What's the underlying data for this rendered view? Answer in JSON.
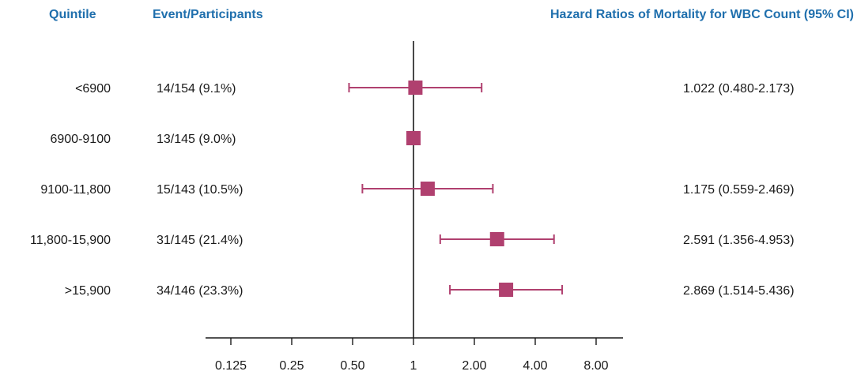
{
  "headers": {
    "quintile": "Quintile",
    "events": "Event/Participants",
    "hr": "Hazard Ratios of Mortality for WBC Count (95% CI)"
  },
  "colors": {
    "marker": "#b0406f",
    "header": "#1f6fad",
    "axis": "#1a1a1a"
  },
  "chart_data": {
    "type": "forest",
    "x_scale": "log2",
    "xlim": [
      0.0884,
      11.3
    ],
    "reference_line": 1,
    "x_ticks": [
      0.125,
      0.25,
      0.5,
      1,
      2,
      4,
      8
    ],
    "x_tick_labels": [
      "0.125",
      "0.25",
      "0.50",
      "1",
      "2.00",
      "4.00",
      "8.00"
    ],
    "rows": [
      {
        "quintile": "<6900",
        "events": "14/154 (9.1%)",
        "hr": 1.022,
        "lo": 0.48,
        "hi": 2.173,
        "label": "1.022 (0.480-2.173)"
      },
      {
        "quintile": "6900-9100",
        "events": "13/145 (9.0%)",
        "hr": 1.0,
        "lo": null,
        "hi": null,
        "label": ""
      },
      {
        "quintile": "9100-11,800",
        "events": "15/143 (10.5%)",
        "hr": 1.175,
        "lo": 0.559,
        "hi": 2.469,
        "label": "1.175 (0.559-2.469)"
      },
      {
        "quintile": "11,800-15,900",
        "events": "31/145 (21.4%)",
        "hr": 2.591,
        "lo": 1.356,
        "hi": 4.953,
        "label": "2.591 (1.356-4.953)"
      },
      {
        "quintile": ">15,900",
        "events": "34/146 (23.3%)",
        "hr": 2.869,
        "lo": 1.514,
        "hi": 5.436,
        "label": "2.869 (1.514-5.436)"
      }
    ]
  }
}
